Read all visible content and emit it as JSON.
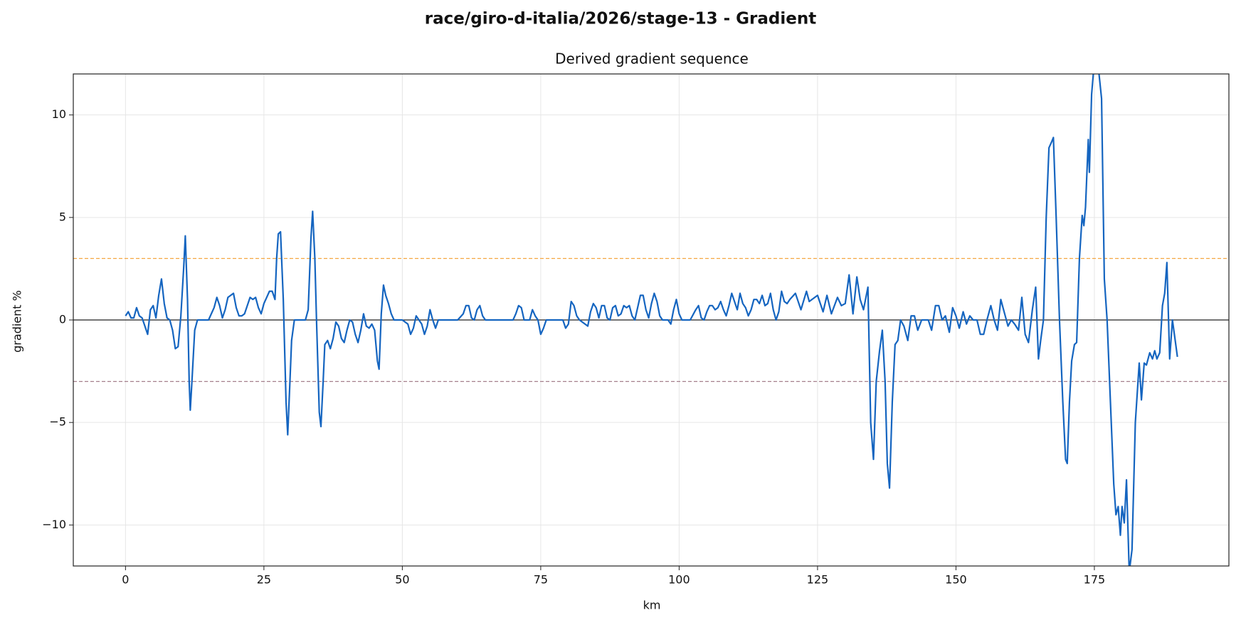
{
  "chart_data": {
    "type": "line",
    "title": "race/giro-d-italia/2026/stage-13 - Gradient",
    "subtitle": "Derived gradient sequence",
    "xlabel": "km",
    "ylabel": "gradient %",
    "xlim": [
      -9.43,
      199.3
    ],
    "ylim": [
      -12,
      12
    ],
    "xticks": [
      0,
      25,
      50,
      75,
      100,
      125,
      150,
      175
    ],
    "yticks": [
      {
        "value": -10,
        "label": "−10"
      },
      {
        "value": -5,
        "label": "−5"
      },
      0,
      5,
      10
    ],
    "grid": true,
    "hlines": [
      {
        "value": 0,
        "color": "#222222",
        "style": "solid"
      },
      {
        "value": 3,
        "color": "#f5a742",
        "style": "dashed"
      },
      {
        "value": -3,
        "color": "#a47f8c",
        "style": "dashed"
      }
    ],
    "x": [
      0,
      0.5,
      1,
      1.5,
      2,
      2.5,
      3,
      3.5,
      4,
      4.5,
      5,
      5.5,
      6,
      6.5,
      7,
      7.5,
      8,
      8.5,
      9,
      9.5,
      10,
      10.5,
      10.8,
      11.2,
      11.5,
      11.7,
      12,
      12.5,
      13,
      15,
      16,
      16.5,
      17,
      17.5,
      18,
      18.5,
      19,
      19.5,
      20,
      20.5,
      21,
      21.5,
      22,
      22.5,
      23,
      23.5,
      24,
      24.5,
      25,
      25.5,
      26,
      26.5,
      27,
      27.3,
      27.6,
      28,
      28.5,
      29,
      29.3,
      29.7,
      30,
      30.5,
      32.5,
      33,
      33.5,
      33.8,
      34.2,
      34.5,
      35,
      35.3,
      35.7,
      36,
      36.5,
      37,
      37.5,
      38,
      38.5,
      39,
      39.5,
      40,
      40.5,
      41,
      41.5,
      42,
      42.5,
      43,
      43.5,
      44,
      44.5,
      45,
      45.5,
      45.8,
      46.2,
      46.6,
      47,
      47.5,
      48,
      48.5,
      50,
      51,
      51.5,
      52,
      52.5,
      53,
      53.5,
      54,
      54.5,
      55,
      55.5,
      56,
      56.5,
      60,
      61,
      61.5,
      62,
      62.5,
      63,
      63.5,
      64,
      64.5,
      65,
      70,
      70.5,
      71,
      71.5,
      72,
      73,
      73.5,
      74,
      74.5,
      75,
      75.5,
      76,
      79,
      79.5,
      80,
      80.5,
      81,
      81.5,
      82,
      83,
      83.5,
      84,
      84.5,
      85,
      85.5,
      86,
      86.5,
      87,
      87.5,
      88,
      88.5,
      89,
      89.5,
      90,
      90.5,
      91,
      91.5,
      92,
      92.5,
      93,
      93.5,
      94,
      94.5,
      95,
      95.5,
      96,
      96.5,
      97,
      98,
      98.5,
      99,
      99.5,
      100,
      100.5,
      102,
      103,
      103.5,
      104,
      104.5,
      105,
      105.5,
      106,
      106.5,
      107,
      107.5,
      108,
      108.5,
      109,
      109.5,
      110,
      110.5,
      111,
      111.5,
      112,
      112.5,
      113,
      113.5,
      114,
      114.5,
      115,
      115.5,
      116,
      116.5,
      117,
      117.5,
      118,
      118.5,
      119,
      119.5,
      120,
      121,
      122,
      123,
      123.5,
      124,
      125,
      126,
      126.7,
      127.5,
      128.6,
      129.3,
      130,
      130.7,
      131.4,
      132.1,
      132.7,
      133.3,
      134.1,
      134.6,
      135.1,
      135.6,
      136.2,
      136.7,
      137.2,
      137.6,
      138,
      138.5,
      139,
      139.5,
      140,
      140.6,
      141.3,
      141.9,
      142.5,
      143.1,
      143.8,
      145,
      145.6,
      146.3,
      146.9,
      147.5,
      148.1,
      148.8,
      149.4,
      150,
      150.6,
      151.3,
      151.9,
      152.5,
      153.1,
      153.8,
      154.4,
      155,
      155.6,
      156.3,
      156.9,
      157.5,
      158.1,
      158.8,
      159.4,
      160,
      160.6,
      161.3,
      161.9,
      162.5,
      163.1,
      163.8,
      164.4,
      164.9,
      165.3,
      165.8,
      166.3,
      166.8,
      167.3,
      167.6,
      168.1,
      168.7,
      169.3,
      169.8,
      170.1,
      170.5,
      170.9,
      171.4,
      171.8,
      172.3,
      172.8,
      173.1,
      173.4,
      173.9,
      174.1,
      174.5,
      174.9,
      175.8,
      176.3,
      176.8,
      177.3,
      177.9,
      178.5,
      178.9,
      179.3,
      179.7,
      180,
      180.4,
      180.8,
      181.3,
      181.8,
      182.4,
      183.1,
      183.5,
      184,
      184.4,
      185,
      185.5,
      185.9,
      186.3,
      186.8,
      187.3,
      187.7,
      188.1,
      188.6,
      189.1,
      190
    ],
    "series": [
      {
        "name": "gradient",
        "color": "#1565c0",
        "values": [
          0.2,
          0.4,
          0.1,
          0.1,
          0.6,
          0.2,
          0.1,
          -0.3,
          -0.7,
          0.5,
          0.7,
          0.1,
          1.2,
          2.0,
          0.8,
          0.1,
          0,
          -0.5,
          -1.4,
          -1.3,
          0.2,
          2.5,
          4.1,
          1.0,
          -3.0,
          -4.4,
          -3.0,
          -0.5,
          0,
          0,
          0.6,
          1.1,
          0.7,
          0.1,
          0.5,
          1.1,
          1.2,
          1.3,
          0.6,
          0.2,
          0.2,
          0.3,
          0.7,
          1.1,
          1.0,
          1.1,
          0.6,
          0.3,
          0.8,
          1.1,
          1.4,
          1.4,
          1.0,
          3.0,
          4.2,
          4.3,
          1.0,
          -4.0,
          -5.6,
          -3.0,
          -1.0,
          0,
          0,
          0.5,
          4.0,
          5.3,
          3.0,
          0,
          -4.5,
          -5.2,
          -3.0,
          -1.2,
          -1.0,
          -1.4,
          -0.9,
          -0.1,
          -0.3,
          -0.9,
          -1.1,
          -0.5,
          0,
          -0.1,
          -0.7,
          -1.1,
          -0.5,
          0.3,
          -0.3,
          -0.4,
          -0.2,
          -0.5,
          -2.0,
          -2.4,
          0.3,
          1.7,
          1.2,
          0.8,
          0.3,
          0,
          0,
          -0.2,
          -0.7,
          -0.4,
          0.2,
          0,
          -0.2,
          -0.7,
          -0.3,
          0.5,
          0,
          -0.4,
          0,
          0,
          0.3,
          0.7,
          0.7,
          0.1,
          0,
          0.5,
          0.7,
          0.2,
          0,
          0,
          0.3,
          0.7,
          0.6,
          0,
          0,
          0.5,
          0.2,
          0,
          -0.7,
          -0.4,
          0,
          0,
          -0.4,
          -0.2,
          0.9,
          0.7,
          0.2,
          0,
          -0.2,
          -0.3,
          0.4,
          0.8,
          0.6,
          0.1,
          0.7,
          0.7,
          0.1,
          0,
          0.6,
          0.7,
          0.2,
          0.3,
          0.7,
          0.6,
          0.7,
          0.2,
          0,
          0.6,
          1.2,
          1.2,
          0.5,
          0.1,
          0.8,
          1.3,
          0.9,
          0.2,
          0,
          0,
          -0.2,
          0.5,
          1.0,
          0.3,
          0,
          0,
          0.5,
          0.7,
          0.1,
          0,
          0.4,
          0.7,
          0.7,
          0.5,
          0.6,
          0.9,
          0.5,
          0.2,
          0.7,
          1.3,
          0.9,
          0.5,
          1.3,
          0.8,
          0.6,
          0.2,
          0.5,
          1.0,
          1.0,
          0.8,
          1.2,
          0.7,
          0.8,
          1.3,
          0.5,
          0,
          0.4,
          1.4,
          0.9,
          0.8,
          1.0,
          1.3,
          0.5,
          1.4,
          0.9,
          1.0,
          1.2,
          0.4,
          1.2,
          0.3,
          1.1,
          0.7,
          0.8,
          2.2,
          0.3,
          2.1,
          1.0,
          0.5,
          1.6,
          -5.0,
          -6.8,
          -3.0,
          -1.5,
          -0.5,
          -3.0,
          -7.0,
          -8.2,
          -4.0,
          -1.2,
          -1.0,
          0,
          -0.3,
          -1.0,
          0.2,
          0.2,
          -0.5,
          0,
          0,
          -0.5,
          0.7,
          0.7,
          0,
          0.2,
          -0.6,
          0.6,
          0.2,
          -0.4,
          0.4,
          -0.2,
          0.2,
          0,
          0,
          -0.7,
          -0.7,
          0,
          0.7,
          0,
          -0.5,
          1.0,
          0.3,
          -0.3,
          0,
          -0.2,
          -0.5,
          1.1,
          -0.7,
          -1.1,
          0.5,
          1.6,
          -1.9,
          -1.0,
          0,
          5.0,
          8.4,
          8.7,
          8.9,
          5.0,
          0,
          -4.0,
          -6.8,
          -7.0,
          -4.0,
          -2.0,
          -1.2,
          -1.1,
          3.0,
          5.1,
          4.6,
          5.5,
          8.8,
          7.2,
          11.0,
          12.3,
          12.1,
          10.8,
          2.0,
          0,
          -4.0,
          -8.0,
          -9.5,
          -9.1,
          -10.5,
          -9.1,
          -9.9,
          -7.8,
          -12.3,
          -11.2,
          -5.0,
          -2.1,
          -3.9,
          -2.1,
          -2.2,
          -1.6,
          -1.9,
          -1.5,
          -1.9,
          -1.6,
          0.7,
          1.3,
          2.8,
          -1.9,
          0,
          -1.8
        ]
      }
    ]
  }
}
